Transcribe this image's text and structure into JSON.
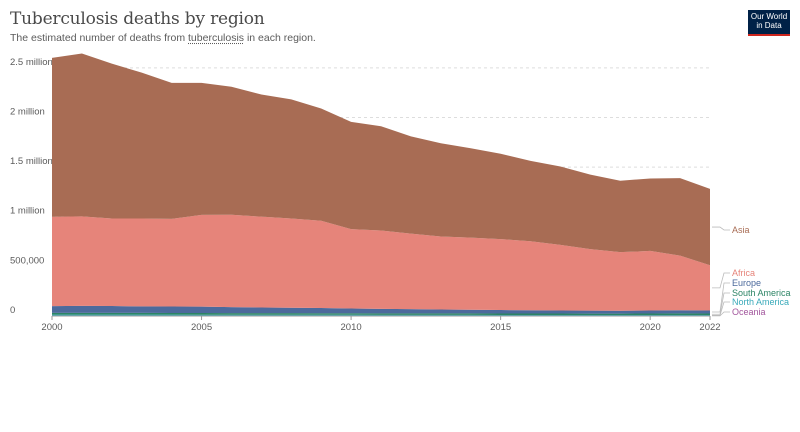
{
  "header": {
    "title": "Tuberculosis deaths by region",
    "subtitle_before": "The estimated number of deaths from ",
    "subtitle_link": "tuberculosis",
    "subtitle_after": " in each region.",
    "logo_line1": "Our World",
    "logo_line2": "in Data"
  },
  "chart_data": {
    "type": "area",
    "title": "Tuberculosis deaths by region",
    "subtitle": "The estimated number of deaths from tuberculosis in each region.",
    "x": [
      2000,
      2001,
      2002,
      2003,
      2004,
      2005,
      2006,
      2007,
      2008,
      2009,
      2010,
      2011,
      2012,
      2013,
      2014,
      2015,
      2016,
      2017,
      2018,
      2019,
      2020,
      2021,
      2022
    ],
    "xticks": [
      2000,
      2005,
      2010,
      2015,
      2020,
      2022
    ],
    "ylim": [
      0,
      2700000
    ],
    "yticks": [
      {
        "value": 0,
        "label": "0"
      },
      {
        "value": 500000,
        "label": "500,000"
      },
      {
        "value": 1000000,
        "label": "1 million"
      },
      {
        "value": 1500000,
        "label": "1.5 million"
      },
      {
        "value": 2000000,
        "label": "2 million"
      },
      {
        "value": 2500000,
        "label": "2.5 million"
      }
    ],
    "stacked": true,
    "grid": "horizontal dotted",
    "legend": "right, labels at series end",
    "series": [
      {
        "name": "Oceania",
        "color": "#a2559c",
        "values": [
          2000,
          2000,
          2000,
          2000,
          2000,
          2000,
          2000,
          2000,
          2000,
          2000,
          2000,
          2000,
          2000,
          2000,
          2000,
          2000,
          2000,
          2000,
          2000,
          2000,
          2000,
          2000,
          2000
        ]
      },
      {
        "name": "North America",
        "color": "#38aaba",
        "values": [
          12000,
          12000,
          12000,
          11500,
          11500,
          11000,
          11000,
          10500,
          10500,
          10000,
          10000,
          9500,
          9500,
          9000,
          9000,
          8500,
          8500,
          8500,
          8000,
          8000,
          8500,
          8500,
          8000
        ]
      },
      {
        "name": "South America",
        "color": "#2c8465",
        "values": [
          18000,
          18000,
          17500,
          17500,
          17000,
          17000,
          16500,
          16500,
          16000,
          16000,
          15500,
          15500,
          15000,
          15000,
          15000,
          14500,
          14500,
          14500,
          14000,
          14000,
          15000,
          16000,
          15000
        ]
      },
      {
        "name": "Europe",
        "color": "#4c6a9c",
        "values": [
          68000,
          70000,
          69000,
          66000,
          65000,
          64000,
          60000,
          57000,
          54000,
          52000,
          48000,
          45000,
          43000,
          40000,
          37000,
          35000,
          33000,
          31000,
          30000,
          29000,
          30000,
          32000,
          31000
        ]
      },
      {
        "name": "Africa",
        "color": "#e6847a",
        "values": [
          900000,
          902000,
          882000,
          885000,
          883000,
          925000,
          930000,
          915000,
          900000,
          880000,
          800000,
          790000,
          760000,
          735000,
          727000,
          715000,
          695000,
          660000,
          620000,
          590000,
          600000,
          550000,
          455000
        ]
      },
      {
        "name": "Asia",
        "color": "#a86c54",
        "values": [
          1600000,
          1640000,
          1560000,
          1470000,
          1370000,
          1330000,
          1290000,
          1230000,
          1200000,
          1130000,
          1080000,
          1050000,
          980000,
          940000,
          900000,
          860000,
          810000,
          790000,
          750000,
          720000,
          730000,
          780000,
          770000
        ]
      }
    ]
  }
}
